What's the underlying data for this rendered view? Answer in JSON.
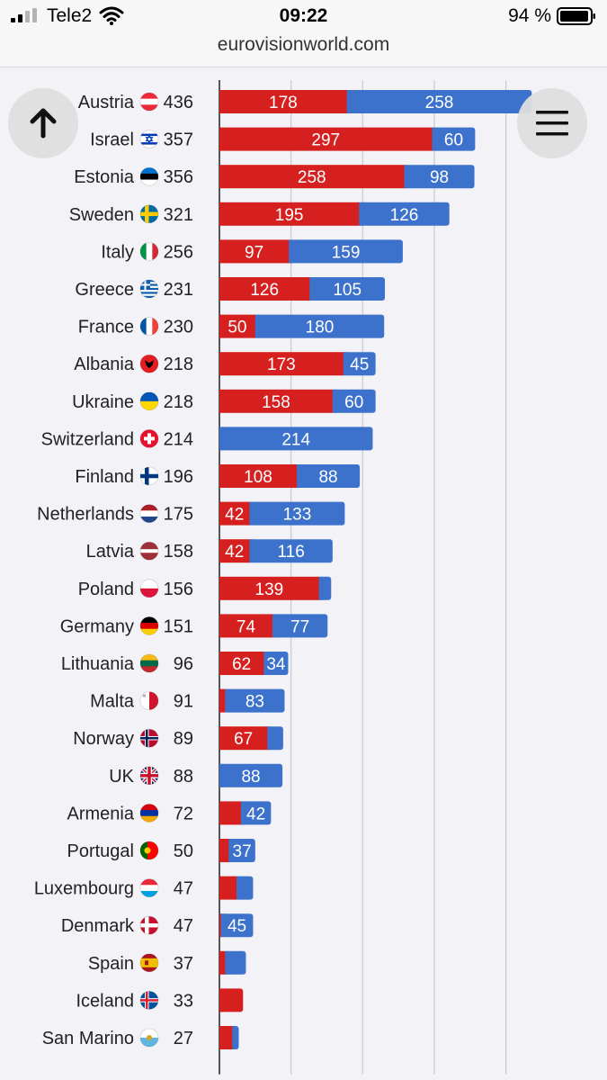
{
  "status_bar": {
    "carrier": "Tele2",
    "time": "09:22",
    "battery": "94 %",
    "signal_icon": "signal-icon",
    "wifi_icon": "wifi-icon",
    "battery_icon": "battery-icon"
  },
  "url_bar": {
    "url": "eurovisionworld.com"
  },
  "buttons": {
    "up_icon": "arrow-up-icon",
    "menu_icon": "hamburger-menu-icon"
  },
  "chart_data": {
    "type": "bar",
    "orientation": "horizontal",
    "stacked": true,
    "xlim": [
      0,
      500
    ],
    "grid": true,
    "colors": {
      "jury": "#d62020",
      "televote": "#3d72cc"
    },
    "rows": [
      {
        "country": "Austria",
        "flag": "austria-flag",
        "total": 436,
        "jury": 178,
        "televote": 258,
        "jury_label": "178",
        "televote_label": "258"
      },
      {
        "country": "Israel",
        "flag": "israel-flag",
        "total": 357,
        "jury": 297,
        "televote": 60,
        "jury_label": "297",
        "televote_label": "60"
      },
      {
        "country": "Estonia",
        "flag": "estonia-flag",
        "total": 356,
        "jury": 258,
        "televote": 98,
        "jury_label": "258",
        "televote_label": "98"
      },
      {
        "country": "Sweden",
        "flag": "sweden-flag",
        "total": 321,
        "jury": 195,
        "televote": 126,
        "jury_label": "195",
        "televote_label": "126"
      },
      {
        "country": "Italy",
        "flag": "italy-flag",
        "total": 256,
        "jury": 97,
        "televote": 159,
        "jury_label": "97",
        "televote_label": "159"
      },
      {
        "country": "Greece",
        "flag": "greece-flag",
        "total": 231,
        "jury": 126,
        "televote": 105,
        "jury_label": "126",
        "televote_label": "105"
      },
      {
        "country": "France",
        "flag": "france-flag",
        "total": 230,
        "jury": 50,
        "televote": 180,
        "jury_label": "50",
        "televote_label": "180"
      },
      {
        "country": "Albania",
        "flag": "albania-flag",
        "total": 218,
        "jury": 173,
        "televote": 45,
        "jury_label": "173",
        "televote_label": "45"
      },
      {
        "country": "Ukraine",
        "flag": "ukraine-flag",
        "total": 218,
        "jury": 158,
        "televote": 60,
        "jury_label": "158",
        "televote_label": "60"
      },
      {
        "country": "Switzerland",
        "flag": "switzerland-flag",
        "total": 214,
        "jury": 0,
        "televote": 214,
        "jury_label": "",
        "televote_label": "214"
      },
      {
        "country": "Finland",
        "flag": "finland-flag",
        "total": 196,
        "jury": 108,
        "televote": 88,
        "jury_label": "108",
        "televote_label": "88"
      },
      {
        "country": "Netherlands",
        "flag": "netherlands-flag",
        "total": 175,
        "jury": 42,
        "televote": 133,
        "jury_label": "42",
        "televote_label": "133"
      },
      {
        "country": "Latvia",
        "flag": "latvia-flag",
        "total": 158,
        "jury": 42,
        "televote": 116,
        "jury_label": "42",
        "televote_label": "116"
      },
      {
        "country": "Poland",
        "flag": "poland-flag",
        "total": 156,
        "jury": 139,
        "televote": 17,
        "jury_label": "139",
        "televote_label": ""
      },
      {
        "country": "Germany",
        "flag": "germany-flag",
        "total": 151,
        "jury": 74,
        "televote": 77,
        "jury_label": "74",
        "televote_label": "77"
      },
      {
        "country": "Lithuania",
        "flag": "lithuania-flag",
        "total": 96,
        "jury": 62,
        "televote": 34,
        "jury_label": "62",
        "televote_label": "34"
      },
      {
        "country": "Malta",
        "flag": "malta-flag",
        "total": 91,
        "jury": 8,
        "televote": 83,
        "jury_label": "",
        "televote_label": "83"
      },
      {
        "country": "Norway",
        "flag": "norway-flag",
        "total": 89,
        "jury": 67,
        "televote": 22,
        "jury_label": "67",
        "televote_label": ""
      },
      {
        "country": "UK",
        "flag": "uk-flag",
        "total": 88,
        "jury": 0,
        "televote": 88,
        "jury_label": "",
        "televote_label": "88"
      },
      {
        "country": "Armenia",
        "flag": "armenia-flag",
        "total": 72,
        "jury": 30,
        "televote": 42,
        "jury_label": "",
        "televote_label": "42"
      },
      {
        "country": "Portugal",
        "flag": "portugal-flag",
        "total": 50,
        "jury": 13,
        "televote": 37,
        "jury_label": "",
        "televote_label": "37"
      },
      {
        "country": "Luxembourg",
        "flag": "luxembourg-flag",
        "total": 47,
        "jury": 24,
        "televote": 23,
        "jury_label": "",
        "televote_label": ""
      },
      {
        "country": "Denmark",
        "flag": "denmark-flag",
        "total": 47,
        "jury": 2,
        "televote": 45,
        "jury_label": "",
        "televote_label": "45"
      },
      {
        "country": "Spain",
        "flag": "spain-flag",
        "total": 37,
        "jury": 8,
        "televote": 29,
        "jury_label": "",
        "televote_label": ""
      },
      {
        "country": "Iceland",
        "flag": "iceland-flag",
        "total": 33,
        "jury": 33,
        "televote": 0,
        "jury_label": "",
        "televote_label": ""
      },
      {
        "country": "San Marino",
        "flag": "san-marino-flag",
        "total": 27,
        "jury": 18,
        "televote": 9,
        "jury_label": "",
        "televote_label": ""
      }
    ]
  }
}
